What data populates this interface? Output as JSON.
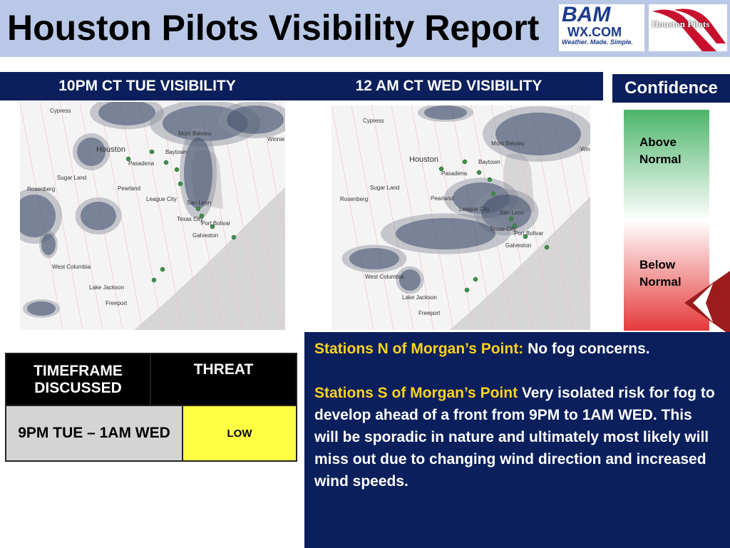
{
  "header": {
    "title": "Houston Pilots Visibility Report",
    "logos": [
      "BAM",
      "WX.COM",
      "Weather. Made. Simple.",
      "Houston Pilots"
    ]
  },
  "maps": [
    {
      "title": "10PM CT TUE VISIBILITY",
      "labels": [
        "Cypress",
        "Houston",
        "Pasadena",
        "Sugar Land",
        "Pearland",
        "Rosenberg",
        "League City",
        "Mont Belvieu",
        "Winnie",
        "Baytown",
        "San Leon",
        "Texas City",
        "Port Bolivar",
        "Galveston",
        "West Columbia",
        "Lake Jackson",
        "Freeport"
      ]
    },
    {
      "title": "12 AM CT WED VISIBILITY",
      "labels": [
        "Cypress",
        "Houston",
        "Pasadena",
        "Sugar Land",
        "Pearland",
        "Rosenberg",
        "League City",
        "Mont Belvieu",
        "Winnie",
        "Baytown",
        "San Leon",
        "Texas City",
        "Port Bolivar",
        "Galveston",
        "West Columbia",
        "Lake Jackson",
        "Freeport"
      ]
    }
  ],
  "confidence": {
    "title": "Confidence",
    "above": "Above Normal",
    "below": "Below Normal"
  },
  "table": {
    "headers": [
      "TIMEFRAME DISCUSSED",
      "THREAT"
    ],
    "rows": [
      [
        "9PM TUE – 1AM WED",
        "LOW"
      ]
    ]
  },
  "notes": [
    {
      "label": "Stations N of Morgan’s Point:",
      "text": "No fog concerns."
    },
    {
      "label": "Stations S of Morgan’s Point",
      "text": "Very isolated risk for fog to develop ahead of a front from 9PM to 1AM WED. This will be sporadic in nature and ultimately most likely will miss out due to changing wind direction and increased wind speeds."
    }
  ]
}
